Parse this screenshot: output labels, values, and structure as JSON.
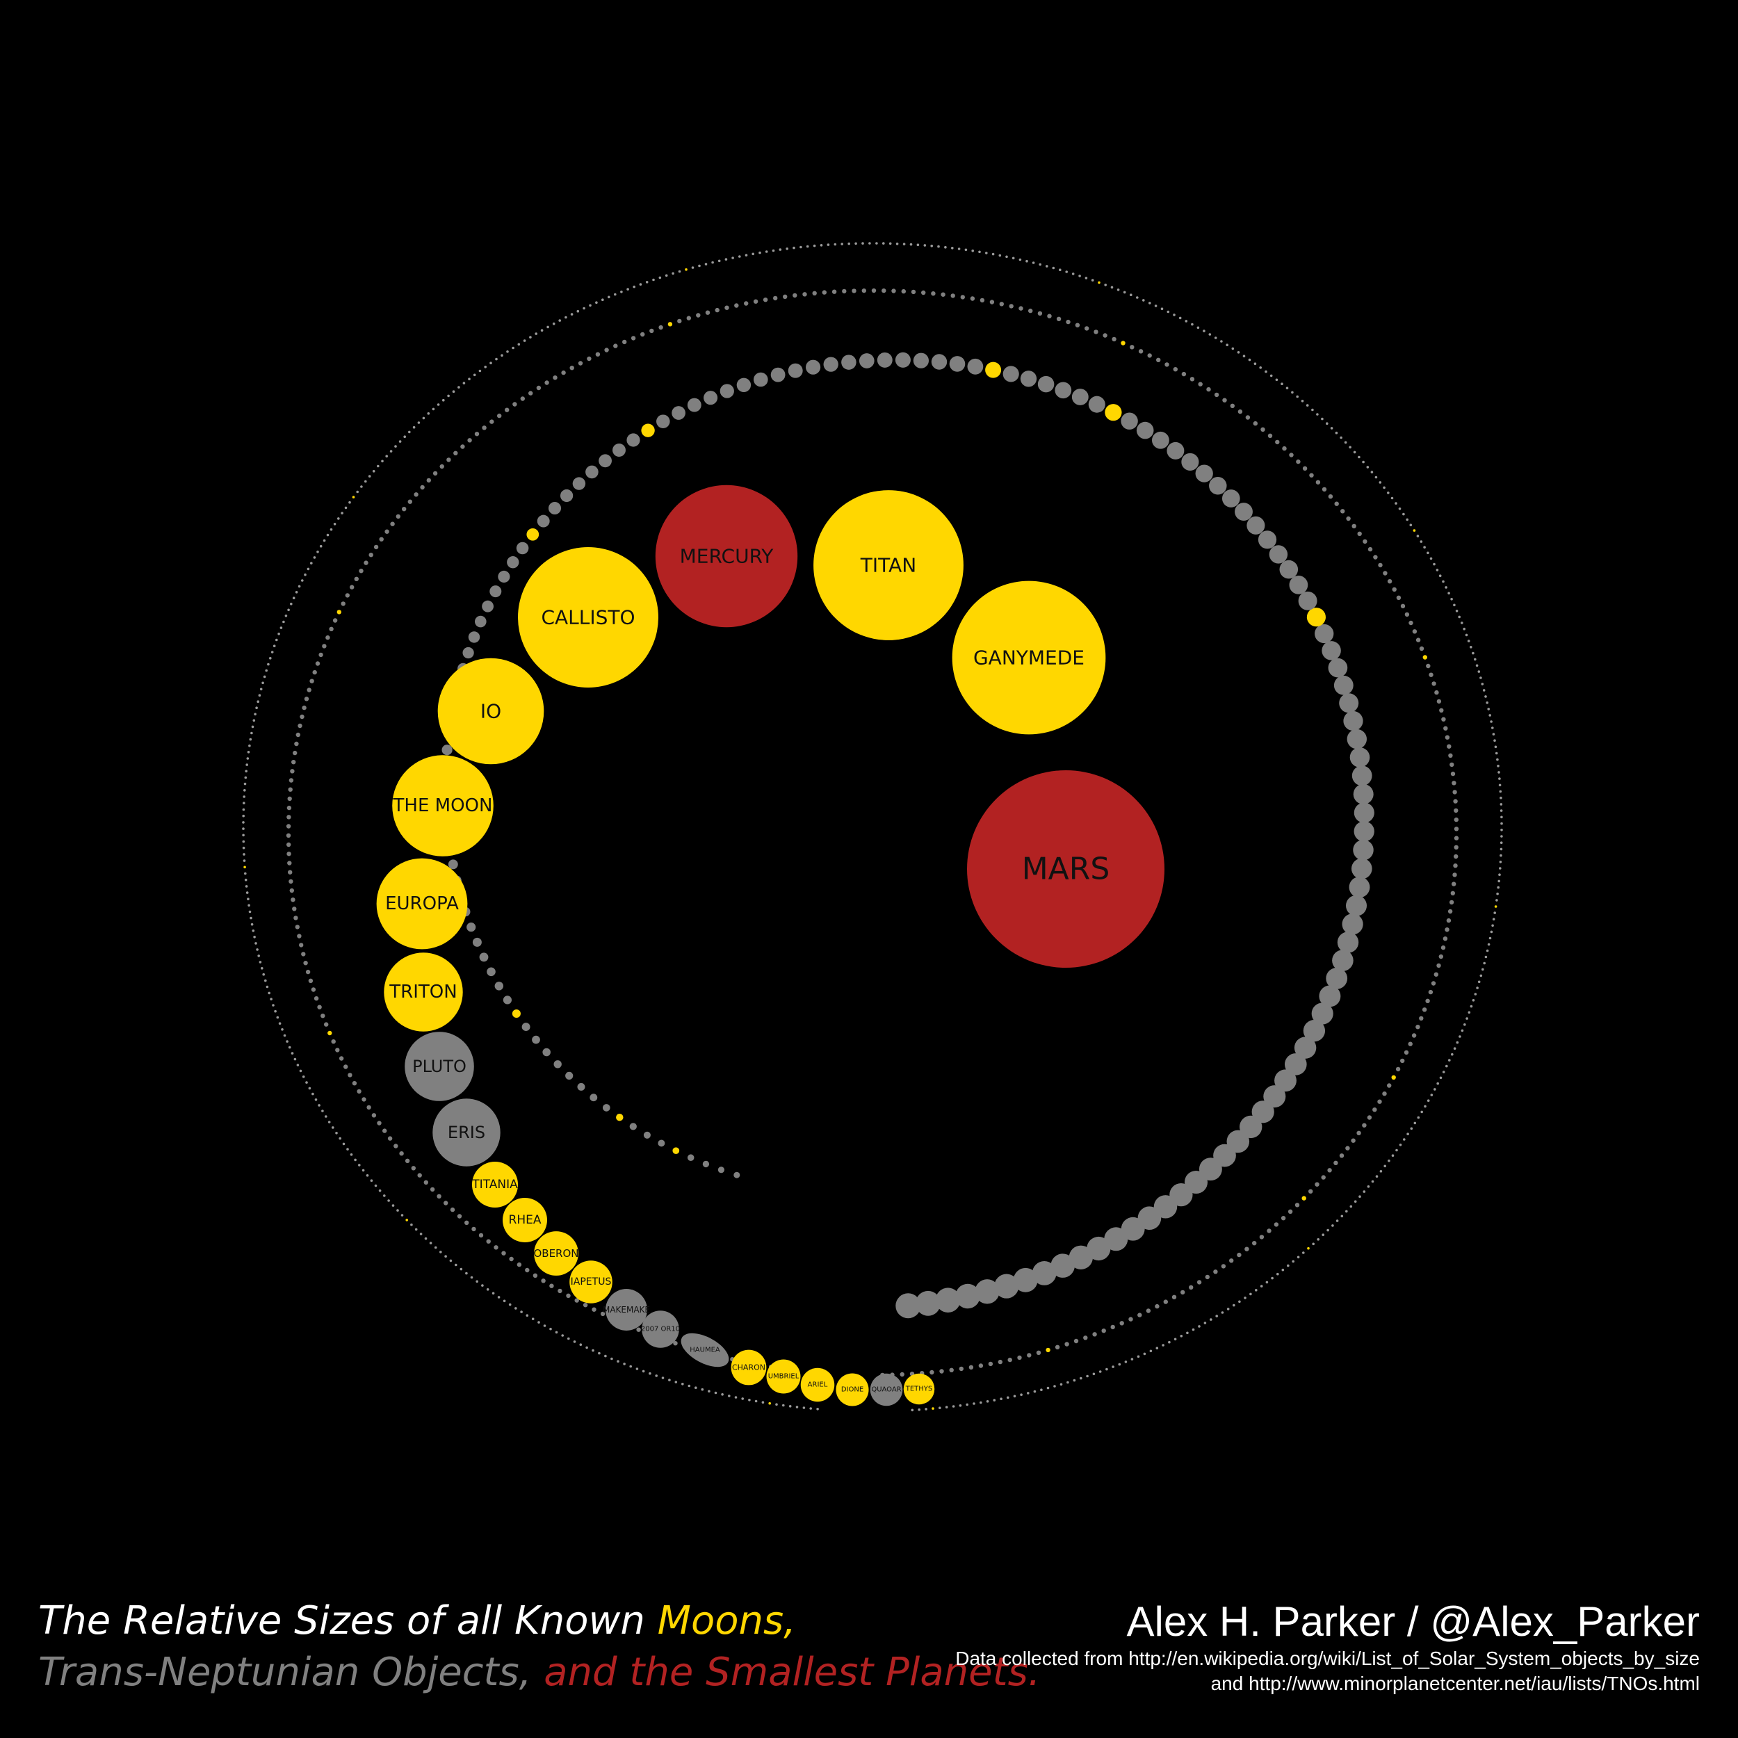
{
  "title": {
    "part1": "The Relative Sizes of all Known ",
    "part2": "Moons,",
    "part3": "Trans-Neptunian Objects,",
    "part4": " and the Smallest Planets."
  },
  "credit": {
    "author": "Alex H. Parker / @Alex_Parker",
    "source_line1": "Data collected from http://en.wikipedia.org/wiki/List_of_Solar_System_objects_by_size",
    "source_line2": "and http://www.minorplanetcenter.net/iau/lists/TNOs.html"
  },
  "colors": {
    "moon": "#FFD700",
    "tno": "#808080",
    "planet": "#B22222",
    "background": "#000000",
    "label": "#111111"
  },
  "chart_data": {
    "type": "bubble",
    "note_units": "diameter in km",
    "categories": [
      "moon",
      "tno",
      "planet"
    ],
    "objects": [
      {
        "name": "MARS",
        "category": "planet",
        "diameter": 6779
      },
      {
        "name": "GANYMEDE",
        "category": "moon",
        "diameter": 5268
      },
      {
        "name": "TITAN",
        "category": "moon",
        "diameter": 5151
      },
      {
        "name": "MERCURY",
        "category": "planet",
        "diameter": 4879
      },
      {
        "name": "CALLISTO",
        "category": "moon",
        "diameter": 4821
      },
      {
        "name": "IO",
        "category": "moon",
        "diameter": 3643
      },
      {
        "name": "THE MOON",
        "category": "moon",
        "diameter": 3475
      },
      {
        "name": "EUROPA",
        "category": "moon",
        "diameter": 3122
      },
      {
        "name": "TRITON",
        "category": "moon",
        "diameter": 2707
      },
      {
        "name": "PLUTO",
        "category": "tno",
        "diameter": 2377
      },
      {
        "name": "ERIS",
        "category": "tno",
        "diameter": 2326
      },
      {
        "name": "TITANIA",
        "category": "moon",
        "diameter": 1578
      },
      {
        "name": "RHEA",
        "category": "moon",
        "diameter": 1527
      },
      {
        "name": "OBERON",
        "category": "moon",
        "diameter": 1523
      },
      {
        "name": "IAPETUS",
        "category": "moon",
        "diameter": 1469
      },
      {
        "name": "MAKEMAKE",
        "category": "tno",
        "diameter": 1430
      },
      {
        "name": "2007 OR10",
        "category": "tno",
        "diameter": 1280
      },
      {
        "name": "HAUMEA",
        "category": "tno",
        "diameter": 1240
      },
      {
        "name": "CHARON",
        "category": "moon",
        "diameter": 1212
      },
      {
        "name": "UMBRIEL",
        "category": "moon",
        "diameter": 1169
      },
      {
        "name": "ARIEL",
        "category": "moon",
        "diameter": 1158
      },
      {
        "name": "DIONE",
        "category": "moon",
        "diameter": 1123
      },
      {
        "name": "QUAOAR",
        "category": "tno",
        "diameter": 1110
      },
      {
        "name": "TETHYS",
        "category": "moon",
        "diameter": 1062
      }
    ]
  }
}
